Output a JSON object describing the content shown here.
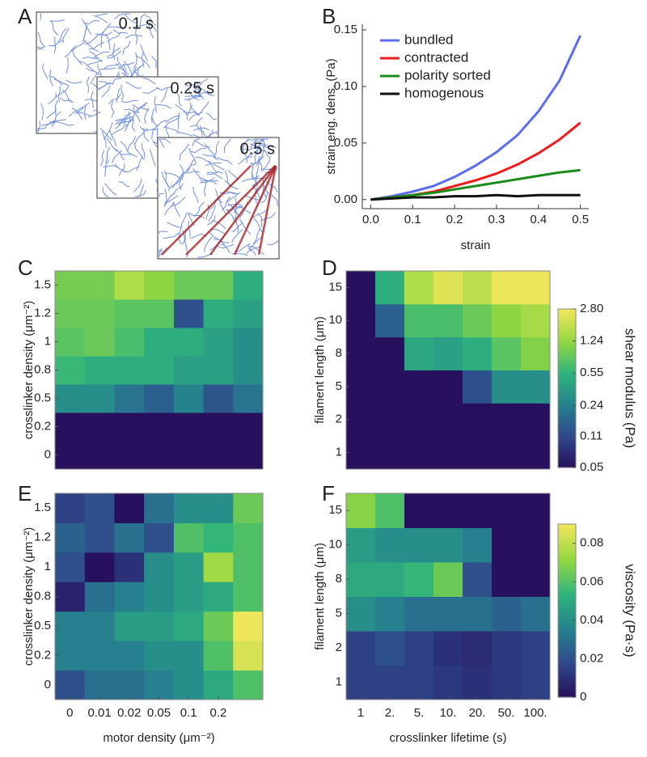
{
  "panel_a": {
    "label": "A",
    "snapshots": [
      "0.1 s",
      "0.25 s",
      "0.5 s"
    ]
  },
  "chart_data": [
    {
      "type": "line",
      "label": "B",
      "xlabel": "strain",
      "ylabel": "strain eng. dens. (Pa)",
      "x": [
        0,
        0.05,
        0.1,
        0.15,
        0.2,
        0.25,
        0.3,
        0.35,
        0.4,
        0.45,
        0.5
      ],
      "xlim": [
        -0.02,
        0.52
      ],
      "ylim": [
        -0.008,
        0.155
      ],
      "xticks": [
        {
          "value": 0,
          "label": "0.0"
        },
        0.1,
        0.2,
        0.3,
        0.4,
        0.5
      ],
      "yticks": [
        {
          "value": 0,
          "label": "0.00"
        },
        0.05,
        {
          "value": 0.1,
          "label": "0.10"
        },
        0.15
      ],
      "legend": "upper left",
      "series": [
        {
          "name": "bundled",
          "color": "#5a6cf0",
          "values": [
            0,
            0.003,
            0.007,
            0.012,
            0.02,
            0.03,
            0.042,
            0.057,
            0.078,
            0.105,
            0.145
          ]
        },
        {
          "name": "contracted",
          "color": "#ee1c1c",
          "values": [
            0,
            0.002,
            0.004,
            0.007,
            0.012,
            0.017,
            0.023,
            0.031,
            0.041,
            0.053,
            0.068
          ]
        },
        {
          "name": "polarity sorted",
          "color": "#1a8a1a",
          "values": [
            0,
            0.002,
            0.004,
            0.006,
            0.009,
            0.012,
            0.015,
            0.018,
            0.021,
            0.024,
            0.026
          ]
        },
        {
          "name": "homogenous",
          "color": "#111111",
          "values": [
            0,
            0.001,
            0.002,
            0.002,
            0.003,
            0.003,
            0.004,
            0.003,
            0.004,
            0.004,
            0.004
          ]
        }
      ]
    },
    {
      "type": "heatmap",
      "label": "C",
      "ylabel": "crosslinker density (μm⁻²)",
      "rows": [
        "0",
        "0.2",
        "0.5",
        "0.8",
        "1",
        "1.2",
        "1.5"
      ],
      "zlim": [
        0.05,
        2.8
      ],
      "zlog": true,
      "colors": [
        "#27115e",
        "#2f4b8c",
        "#25838e",
        "#2fb47c",
        "#93d741",
        "#eee65a"
      ],
      "z": [
        [
          0.05,
          0.05,
          0.05,
          0.05,
          0.05,
          0.05,
          0.05
        ],
        [
          0.05,
          0.05,
          0.05,
          0.05,
          0.05,
          0.05,
          0.05
        ],
        [
          0.3,
          0.3,
          0.2,
          0.15,
          0.25,
          0.13,
          0.2
        ],
        [
          0.6,
          0.5,
          0.5,
          0.5,
          0.4,
          0.4,
          0.3
        ],
        [
          0.8,
          0.9,
          0.7,
          0.5,
          0.5,
          0.4,
          0.3
        ],
        [
          0.9,
          0.9,
          0.8,
          0.8,
          0.12,
          0.5,
          0.4
        ],
        [
          1.0,
          1.0,
          1.6,
          1.2,
          0.9,
          0.9,
          0.5
        ]
      ]
    },
    {
      "type": "heatmap",
      "label": "D",
      "ylabel": "filament length (μm)",
      "rows": [
        "1",
        "2",
        "5",
        "8",
        "10",
        "15"
      ],
      "zlim": [
        0.05,
        2.8
      ],
      "zlog": true,
      "colors": [
        "#27115e",
        "#2f4b8c",
        "#25838e",
        "#2fb47c",
        "#93d741",
        "#eee65a"
      ],
      "colorbar": {
        "label": "shear modulus (Pa)",
        "ticks": [
          {
            "value": 2.8,
            "label": "2.80"
          },
          1.24,
          0.55,
          0.24,
          0.11,
          0.05
        ]
      },
      "z": [
        [
          0.05,
          0.05,
          0.05,
          0.05,
          0.05,
          0.05,
          0.05
        ],
        [
          0.05,
          0.05,
          0.05,
          0.05,
          0.05,
          0.05,
          0.05
        ],
        [
          0.05,
          0.05,
          0.05,
          0.05,
          0.12,
          0.3,
          0.3
        ],
        [
          0.05,
          0.05,
          0.45,
          0.4,
          0.5,
          0.8,
          1.1
        ],
        [
          0.05,
          0.15,
          0.7,
          0.7,
          0.9,
          1.2,
          1.5
        ],
        [
          0.05,
          0.5,
          1.6,
          2.4,
          1.8,
          2.8,
          2.8
        ]
      ]
    },
    {
      "type": "heatmap",
      "label": "E",
      "ylabel": "crosslinker density (μm⁻²)",
      "xlabel": "motor density (μm⁻²)",
      "categories": [
        "0",
        "0.01",
        "0.02",
        "0.05",
        "0.1",
        "0.2",
        null
      ],
      "rows": [
        "0",
        "0.2",
        "0.5",
        "0.8",
        "1",
        "1.2",
        "1.5"
      ],
      "zlim": [
        0,
        0.09
      ],
      "zlog": false,
      "colors": [
        "#27115e",
        "#2f4b8c",
        "#25838e",
        "#2fb47c",
        "#93d741",
        "#eee65a"
      ],
      "z": [
        [
          0.02,
          0.03,
          0.03,
          0.035,
          0.04,
          0.05,
          0.06
        ],
        [
          0.035,
          0.035,
          0.035,
          0.04,
          0.04,
          0.06,
          0.085
        ],
        [
          0.035,
          0.035,
          0.045,
          0.045,
          0.05,
          0.065,
          0.09
        ],
        [
          0.005,
          0.03,
          0.035,
          0.04,
          0.045,
          0.05,
          0.06
        ],
        [
          0.02,
          0,
          0.01,
          0.04,
          0.045,
          0.075,
          0.06
        ],
        [
          0.025,
          0.02,
          0.03,
          0.02,
          0.06,
          0.055,
          0.06
        ],
        [
          0.015,
          0.02,
          0,
          0.03,
          0.04,
          0.04,
          0.065
        ]
      ]
    },
    {
      "type": "heatmap",
      "label": "F",
      "ylabel": "filament length (μm)",
      "xlabel": "crosslinker lifetime (s)",
      "categories": [
        "1",
        "2.",
        "5.",
        "10.",
        "20.",
        "50.",
        "100."
      ],
      "rows": [
        "1",
        "2",
        "5",
        "8",
        "10",
        "15"
      ],
      "zlim": [
        0,
        0.09
      ],
      "zlog": false,
      "colors": [
        "#27115e",
        "#2f4b8c",
        "#25838e",
        "#2fb47c",
        "#93d741",
        "#eee65a"
      ],
      "colorbar": {
        "label": "viscosity (Pa·s)",
        "ticks": [
          0,
          0.02,
          0.04,
          0.06,
          0.08
        ]
      },
      "z": [
        [
          0.015,
          0.015,
          0.015,
          0.012,
          0.01,
          0.012,
          0.015
        ],
        [
          0.015,
          0.02,
          0.015,
          0.01,
          0.008,
          0.012,
          0.015
        ],
        [
          0.04,
          0.035,
          0.03,
          0.03,
          0.03,
          0.025,
          0.03
        ],
        [
          0.05,
          0.05,
          0.055,
          0.065,
          0.02,
          0,
          0
        ],
        [
          0.045,
          0.04,
          0.04,
          0.04,
          0.035,
          0,
          0
        ],
        [
          0.07,
          0.06,
          0,
          0,
          0,
          0,
          0
        ]
      ]
    }
  ]
}
